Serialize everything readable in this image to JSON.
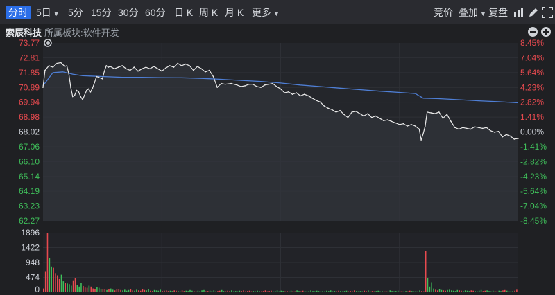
{
  "toolbar": {
    "tabs": [
      {
        "label": "分时",
        "active": true,
        "caret": false
      },
      {
        "label": "5日",
        "active": false,
        "caret": true
      },
      {
        "label": "5分",
        "active": false,
        "caret": false
      },
      {
        "label": "15分",
        "active": false,
        "caret": false
      },
      {
        "label": "30分",
        "active": false,
        "caret": false
      },
      {
        "label": "60分",
        "active": false,
        "caret": false
      },
      {
        "label": "日 K",
        "active": false,
        "caret": false
      },
      {
        "label": "周 K",
        "active": false,
        "caret": false
      },
      {
        "label": "月 K",
        "active": false,
        "caret": false
      },
      {
        "label": "更多",
        "active": false,
        "caret": true
      }
    ],
    "right_tools": {
      "bid": "竞价",
      "overlay": "叠加",
      "review": "复盘"
    },
    "icons": [
      "bar-chart-icon",
      "pen-icon",
      "expand-icon"
    ]
  },
  "info": {
    "stock_name": "索辰科技",
    "sector": "所属板块:软件开发",
    "icons": [
      "minus-icon",
      "plus-icon"
    ]
  },
  "colors": {
    "up": "#e84a4f",
    "down": "#3fbf5a",
    "price_line": "#eaeaea",
    "avg_line": "#4f7fd6",
    "grid": "#2e3036",
    "background": "#1f2023"
  },
  "chart_data": [
    {
      "type": "line",
      "title": "",
      "y_left_ticks": [
        "73.77",
        "72.81",
        "71.85",
        "70.89",
        "69.94",
        "68.98",
        "68.02",
        "67.06",
        "66.10",
        "65.14",
        "64.19",
        "63.23",
        "62.27"
      ],
      "y_right_ticks": [
        "8.45%",
        "7.04%",
        "5.64%",
        "4.23%",
        "2.82%",
        "1.41%",
        "0.00%",
        "-1.41%",
        "-2.82%",
        "-4.23%",
        "-5.64%",
        "-7.04%",
        "-8.45%"
      ],
      "reference_price": 68.02,
      "ylim": [
        62.27,
        73.77
      ],
      "x_minutes": [
        240
      ],
      "series": [
        {
          "key": "price",
          "points": [
            [
              0,
              70.9
            ],
            [
              1,
              72.0
            ],
            [
              3,
              72.3
            ],
            [
              5,
              72.2
            ],
            [
              7,
              72.45
            ],
            [
              9,
              72.5
            ],
            [
              11,
              72.25
            ],
            [
              12,
              72.3
            ],
            [
              13,
              71.8
            ],
            [
              14,
              70.9
            ],
            [
              15,
              70.3
            ],
            [
              16,
              70.4
            ],
            [
              17,
              70.7
            ],
            [
              18,
              70.6
            ],
            [
              19,
              70.3
            ],
            [
              20,
              70.1
            ],
            [
              21,
              70.4
            ],
            [
              22,
              70.7
            ],
            [
              23,
              70.8
            ],
            [
              24,
              70.6
            ],
            [
              25,
              70.85
            ],
            [
              26,
              71.2
            ],
            [
              27,
              71.6
            ],
            [
              28,
              71.55
            ],
            [
              30,
              71.45
            ],
            [
              31,
              71.95
            ],
            [
              32,
              72.3
            ],
            [
              33,
              72.2
            ],
            [
              34,
              72.25
            ],
            [
              36,
              72.1
            ],
            [
              38,
              72.2
            ],
            [
              40,
              72.3
            ],
            [
              42,
              72.1
            ],
            [
              44,
              72.0
            ],
            [
              46,
              72.2
            ],
            [
              48,
              71.95
            ],
            [
              50,
              72.1
            ],
            [
              52,
              72.2
            ],
            [
              54,
              72.1
            ],
            [
              56,
              72.25
            ],
            [
              58,
              72.1
            ],
            [
              60,
              71.95
            ],
            [
              62,
              72.15
            ],
            [
              64,
              72.3
            ],
            [
              66,
              72.2
            ],
            [
              68,
              72.45
            ],
            [
              70,
              72.3
            ],
            [
              72,
              72.4
            ],
            [
              74,
              72.3
            ],
            [
              76,
              72.0
            ],
            [
              78,
              72.25
            ],
            [
              80,
              72.1
            ],
            [
              82,
              71.9
            ],
            [
              84,
              72.0
            ],
            [
              86,
              71.6
            ],
            [
              88,
              70.9
            ],
            [
              90,
              71.15
            ],
            [
              92,
              71.1
            ],
            [
              95,
              71.15
            ],
            [
              98,
              71.05
            ],
            [
              100,
              70.95
            ],
            [
              102,
              71.0
            ],
            [
              104,
              71.1
            ],
            [
              106,
              71.1
            ],
            [
              108,
              70.95
            ],
            [
              110,
              70.9
            ],
            [
              112,
              71.05
            ],
            [
              114,
              71.1
            ],
            [
              116,
              71.15
            ],
            [
              118,
              70.95
            ],
            [
              120,
              70.8
            ],
            [
              122,
              70.55
            ],
            [
              124,
              70.6
            ],
            [
              126,
              70.45
            ],
            [
              128,
              70.55
            ],
            [
              130,
              70.35
            ],
            [
              132,
              70.45
            ],
            [
              134,
              70.35
            ],
            [
              136,
              70.2
            ],
            [
              138,
              70.05
            ],
            [
              140,
              69.95
            ],
            [
              142,
              69.7
            ],
            [
              144,
              69.55
            ],
            [
              146,
              69.45
            ],
            [
              148,
              69.3
            ],
            [
              150,
              69.4
            ],
            [
              152,
              69.15
            ],
            [
              154,
              68.95
            ],
            [
              156,
              69.3
            ],
            [
              158,
              69.35
            ],
            [
              160,
              69.2
            ],
            [
              162,
              69.05
            ],
            [
              164,
              69.2
            ],
            [
              166,
              68.95
            ],
            [
              168,
              69.05
            ],
            [
              170,
              68.9
            ],
            [
              172,
              68.75
            ],
            [
              174,
              68.8
            ],
            [
              176,
              68.7
            ],
            [
              178,
              68.6
            ],
            [
              180,
              68.5
            ],
            [
              182,
              68.55
            ],
            [
              184,
              68.4
            ],
            [
              186,
              68.5
            ],
            [
              188,
              68.4
            ],
            [
              190,
              68.2
            ],
            [
              191,
              67.5
            ],
            [
              192,
              67.9
            ],
            [
              193,
              68.4
            ],
            [
              194,
              69.3
            ],
            [
              196,
              69.25
            ],
            [
              198,
              69.2
            ],
            [
              200,
              69.3
            ],
            [
              202,
              68.9
            ],
            [
              204,
              69.15
            ],
            [
              206,
              68.7
            ],
            [
              208,
              68.3
            ],
            [
              210,
              68.2
            ],
            [
              212,
              68.3
            ],
            [
              214,
              68.25
            ],
            [
              216,
              68.2
            ],
            [
              218,
              68.35
            ],
            [
              220,
              68.3
            ],
            [
              222,
              68.25
            ],
            [
              224,
              68.3
            ],
            [
              226,
              68.1
            ],
            [
              228,
              68.0
            ],
            [
              230,
              68.05
            ],
            [
              232,
              67.7
            ],
            [
              234,
              67.85
            ],
            [
              236,
              67.75
            ],
            [
              238,
              67.55
            ],
            [
              240,
              67.6
            ]
          ]
        },
        {
          "key": "average",
          "points": [
            [
              0,
              71.0
            ],
            [
              5,
              71.85
            ],
            [
              10,
              71.9
            ],
            [
              15,
              71.75
            ],
            [
              20,
              71.65
            ],
            [
              30,
              71.6
            ],
            [
              40,
              71.55
            ],
            [
              50,
              71.55
            ],
            [
              60,
              71.53
            ],
            [
              70,
              71.52
            ],
            [
              80,
              71.48
            ],
            [
              90,
              71.42
            ],
            [
              100,
              71.35
            ],
            [
              110,
              71.28
            ],
            [
              120,
              71.18
            ],
            [
              130,
              71.05
            ],
            [
              140,
              70.95
            ],
            [
              150,
              70.85
            ],
            [
              160,
              70.75
            ],
            [
              170,
              70.65
            ],
            [
              180,
              70.57
            ],
            [
              188,
              70.5
            ],
            [
              192,
              70.2
            ],
            [
              200,
              70.17
            ],
            [
              210,
              70.1
            ],
            [
              220,
              70.03
            ],
            [
              230,
              69.97
            ],
            [
              240,
              69.9
            ]
          ]
        }
      ]
    },
    {
      "type": "bar",
      "title": "",
      "y_ticks": [
        "1896",
        "1422",
        "948",
        "474",
        "0"
      ],
      "ylim": [
        0,
        1896
      ],
      "volumes": [
        120,
        650,
        1960,
        1100,
        820,
        780,
        610,
        540,
        420,
        560,
        350,
        300,
        280,
        260,
        210,
        360,
        450,
        230,
        180,
        300,
        200,
        150,
        140,
        210,
        180,
        120,
        90,
        160,
        140,
        100,
        110,
        90,
        70,
        100,
        120,
        80,
        60,
        110,
        90,
        70,
        60,
        80,
        50,
        70,
        90,
        60,
        50,
        80,
        60,
        50,
        110,
        70,
        60,
        90,
        50,
        40,
        70,
        60,
        50,
        80,
        40,
        50,
        60,
        40,
        50,
        40,
        60,
        50,
        40,
        30,
        60,
        40,
        50,
        40,
        70,
        50,
        40,
        30,
        50,
        40,
        60,
        70,
        30,
        40,
        50,
        40,
        60,
        30,
        40,
        50,
        70,
        40,
        30,
        50,
        40,
        60,
        30,
        40,
        30,
        50,
        40,
        60,
        30,
        40,
        50,
        30,
        40,
        30,
        50,
        40,
        30,
        40,
        60,
        30,
        40,
        50,
        30,
        40,
        60,
        30,
        50,
        40,
        30,
        40,
        30,
        50,
        40,
        30,
        60,
        40,
        30,
        50,
        40,
        30,
        40,
        60,
        40,
        30,
        50,
        40,
        30,
        40,
        30,
        50,
        40,
        60,
        30,
        40,
        30,
        50,
        40,
        30,
        40,
        50,
        30,
        40,
        30,
        60,
        40,
        30,
        40,
        30,
        50,
        40,
        60,
        30,
        40,
        30,
        40,
        50,
        30,
        40,
        30,
        40,
        30,
        60,
        40,
        30,
        40,
        50,
        30,
        40,
        30,
        40,
        30,
        50,
        40,
        30,
        40,
        30,
        60,
        40,
        30,
        1300,
        450,
        180,
        320,
        120,
        80,
        60,
        90,
        70,
        60,
        50,
        70,
        80,
        60,
        50,
        40,
        70,
        60,
        50,
        40,
        60,
        50,
        40,
        60,
        50,
        40,
        30,
        50,
        70,
        40,
        50,
        60,
        40,
        30,
        50,
        40,
        30,
        50,
        40,
        60,
        70,
        50,
        40,
        30,
        40,
        50,
        80
      ]
    }
  ]
}
